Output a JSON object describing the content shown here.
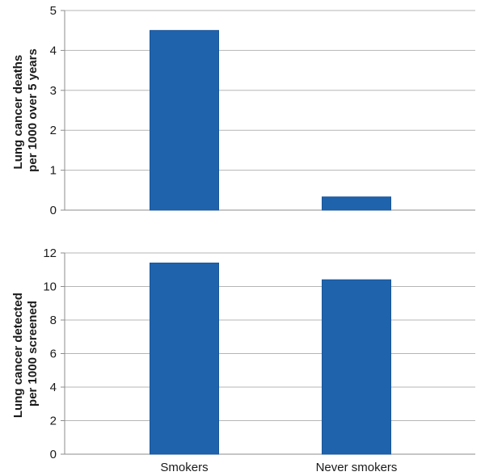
{
  "colors": {
    "bar": "#1f63ad",
    "bar_stroke": "#1a5597",
    "grid": "#b5b5b5",
    "axis": "#8c8c8c",
    "text": "#1a1a1a"
  },
  "chart_data": [
    {
      "type": "bar",
      "categories": [
        "Smokers",
        "Never smokers"
      ],
      "values": [
        4.5,
        0.33
      ],
      "ylabel_lines": [
        "Lung cancer deaths",
        "per 1000 over 5 years"
      ],
      "ylim": [
        0,
        5
      ],
      "yticks": [
        0,
        1,
        2,
        3,
        4,
        5
      ],
      "ytick_labels": [
        "0",
        "1",
        "2",
        "3",
        "4",
        "5"
      ],
      "grid": true,
      "show_category_labels": false
    },
    {
      "type": "bar",
      "categories": [
        "Smokers",
        "Never smokers"
      ],
      "values": [
        11.4,
        10.4
      ],
      "ylabel_lines": [
        "Lung cancer detected",
        "per 1000 screened"
      ],
      "ylim": [
        0,
        12
      ],
      "yticks": [
        0,
        2,
        4,
        6,
        8,
        10,
        12
      ],
      "ytick_labels": [
        "0",
        "2",
        "4",
        "6",
        "8",
        "10",
        "12"
      ],
      "grid": true,
      "show_category_labels": true
    }
  ]
}
